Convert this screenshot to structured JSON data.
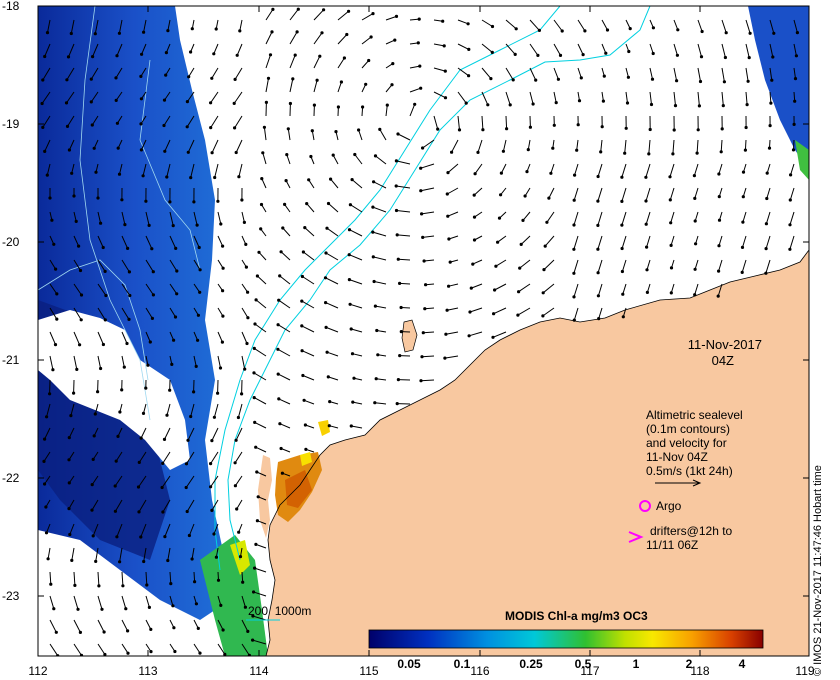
{
  "date_stamp": {
    "date": "11-Nov-2017",
    "time": "04Z"
  },
  "axes": {
    "x_ticks": [
      "112",
      "113",
      "114",
      "115",
      "116",
      "117",
      "118",
      "119"
    ],
    "y_ticks": [
      "-18",
      "-19",
      "-20",
      "-21",
      "-22",
      "-23"
    ]
  },
  "legend": {
    "lines": [
      "Altimetric sealevel",
      "(0.1m contours)",
      "and velocity for",
      "11-Nov 04Z",
      "0.5m/s (1kt 24h)"
    ],
    "argo_label": "Argo",
    "drifters_label_1": "drifters@12h to",
    "drifters_label_2": "11/11 06Z",
    "depth_label": "200  1000m"
  },
  "colorbar": {
    "title": "MODIS Chl-a mg/m3 OC3",
    "ticks": [
      "0.05",
      "0.1",
      "0.25",
      "0.5",
      "1",
      "2",
      "4"
    ]
  },
  "credit": "© IMOS 21-Nov-2017 11:47:46 Hobart time",
  "colors": {
    "land": "#f8c8a0",
    "ocean": "#ffffff",
    "contour": "#00d0e0",
    "argo": "#ff00ff"
  },
  "chart_data": {
    "type": "map",
    "x_range": [
      112,
      119
    ],
    "y_range": [
      -23.5,
      -18
    ],
    "x_unit": "longitude",
    "y_unit": "latitude",
    "colorbar_scale": "log"
  }
}
